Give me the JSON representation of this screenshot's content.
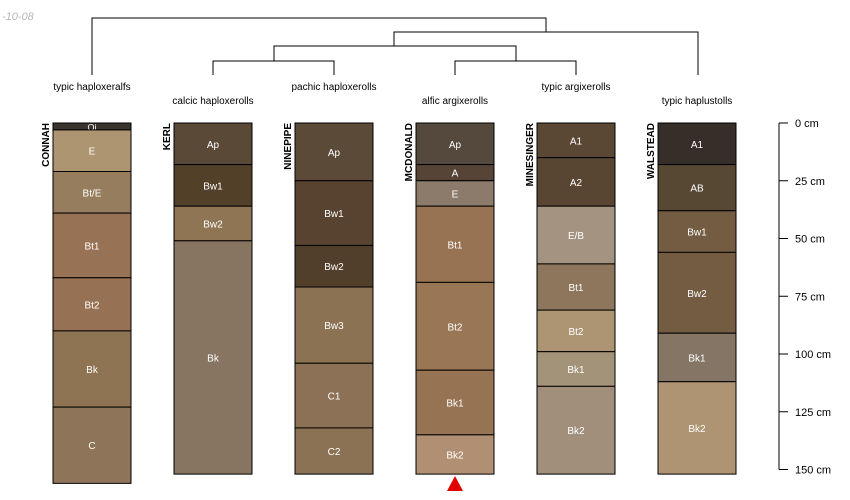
{
  "date_label": "-10-08",
  "marker_color": "#e00000",
  "depth_scale": {
    "labels": [
      "0 cm",
      "25 cm",
      "50 cm",
      "75 cm",
      "100 cm",
      "125 cm",
      "150 cm"
    ],
    "values": [
      0,
      25,
      50,
      75,
      100,
      125,
      150
    ],
    "max_depth": 150
  },
  "profiles": [
    {
      "name": "CONNAH",
      "taxonomy": "typic haploxeralfs",
      "horizons": [
        {
          "name": "Oi",
          "top": 0,
          "bottom": 3,
          "color": "#3a342f"
        },
        {
          "name": "E",
          "top": 3,
          "bottom": 21,
          "color": "#ad9572"
        },
        {
          "name": "Bt/E",
          "top": 21,
          "bottom": 39,
          "color": "#967d5e"
        },
        {
          "name": "Bt1",
          "top": 39,
          "bottom": 67,
          "color": "#977254"
        },
        {
          "name": "Bt2",
          "top": 67,
          "bottom": 90,
          "color": "#977153"
        },
        {
          "name": "Bk",
          "top": 90,
          "bottom": 123,
          "color": "#8e7453"
        },
        {
          "name": "C",
          "top": 123,
          "bottom": 156,
          "color": "#8e7559"
        }
      ]
    },
    {
      "name": "KERL",
      "taxonomy": "calcic haploxerolls",
      "horizons": [
        {
          "name": "Ap",
          "top": 0,
          "bottom": 18,
          "color": "#594936"
        },
        {
          "name": "Bw1",
          "top": 18,
          "bottom": 36,
          "color": "#534028"
        },
        {
          "name": "Bw2",
          "top": 36,
          "bottom": 51,
          "color": "#8f7554"
        },
        {
          "name": "Bk",
          "top": 51,
          "bottom": 152,
          "color": "#877562"
        }
      ]
    },
    {
      "name": "NINEPIPE",
      "taxonomy": "pachic haploxerolls",
      "horizons": [
        {
          "name": "Ap",
          "top": 0,
          "bottom": 25,
          "color": "#5c4a38"
        },
        {
          "name": "Bw1",
          "top": 25,
          "bottom": 53,
          "color": "#574330"
        },
        {
          "name": "Bw2",
          "top": 53,
          "bottom": 71,
          "color": "#523f2b"
        },
        {
          "name": "Bw3",
          "top": 71,
          "bottom": 104,
          "color": "#8b7253"
        },
        {
          "name": "C1",
          "top": 104,
          "bottom": 132,
          "color": "#8c7156"
        },
        {
          "name": "C2",
          "top": 132,
          "bottom": 152,
          "color": "#8c7254"
        }
      ]
    },
    {
      "name": "MCDONALD",
      "taxonomy": "alfic argixerolls",
      "horizons": [
        {
          "name": "Ap",
          "top": 0,
          "bottom": 18,
          "color": "#55483d"
        },
        {
          "name": "A",
          "top": 18,
          "bottom": 25,
          "color": "#564537"
        },
        {
          "name": "E",
          "top": 25,
          "bottom": 36,
          "color": "#8c7a6b"
        },
        {
          "name": "Bt1",
          "top": 36,
          "bottom": 69,
          "color": "#977353"
        },
        {
          "name": "Bt2",
          "top": 69,
          "bottom": 107,
          "color": "#997654"
        },
        {
          "name": "Bk1",
          "top": 107,
          "bottom": 135,
          "color": "#967453"
        },
        {
          "name": "Bk2",
          "top": 135,
          "bottom": 152,
          "color": "#b18f72"
        }
      ]
    },
    {
      "name": "MINESINGER",
      "taxonomy": "typic argixerolls",
      "horizons": [
        {
          "name": "A1",
          "top": 0,
          "bottom": 15,
          "color": "#5a4734"
        },
        {
          "name": "A2",
          "top": 15,
          "bottom": 36,
          "color": "#584632"
        },
        {
          "name": "E/B",
          "top": 36,
          "bottom": 61,
          "color": "#a39380"
        },
        {
          "name": "Bt1",
          "top": 61,
          "bottom": 81,
          "color": "#8d765c"
        },
        {
          "name": "Bt2",
          "top": 81,
          "bottom": 99,
          "color": "#ad9472"
        },
        {
          "name": "Bk1",
          "top": 99,
          "bottom": 114,
          "color": "#a39379"
        },
        {
          "name": "Bk2",
          "top": 114,
          "bottom": 152,
          "color": "#a18f7c"
        }
      ]
    },
    {
      "name": "WALSTEAD",
      "taxonomy": "typic haplustolls",
      "horizons": [
        {
          "name": "A1",
          "top": 0,
          "bottom": 18,
          "color": "#362e28"
        },
        {
          "name": "AB",
          "top": 18,
          "bottom": 38,
          "color": "#574834"
        },
        {
          "name": "Bw1",
          "top": 38,
          "bottom": 56,
          "color": "#735c42"
        },
        {
          "name": "Bw2",
          "top": 56,
          "bottom": 91,
          "color": "#735c42"
        },
        {
          "name": "Bk1",
          "top": 91,
          "bottom": 112,
          "color": "#857564"
        },
        {
          "name": "Bk2",
          "top": 112,
          "bottom": 152,
          "color": "#ae9473"
        }
      ]
    }
  ]
}
